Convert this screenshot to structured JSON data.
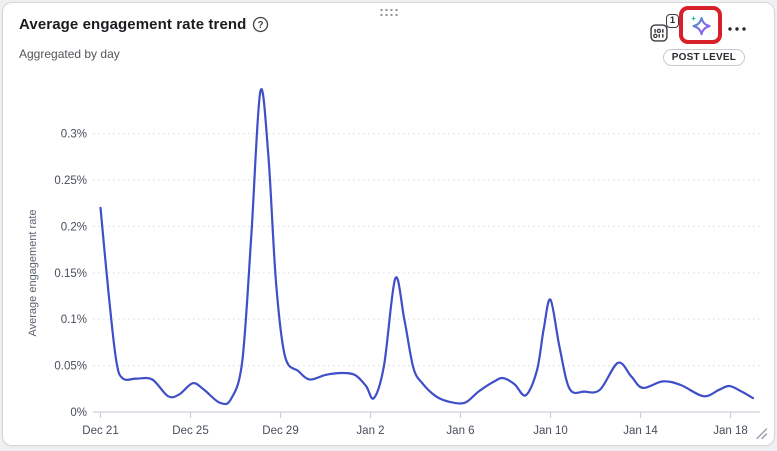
{
  "header": {
    "title": "Average engagement rate trend",
    "subtitle": "Aggregated by day",
    "help_glyph": "?",
    "filter_button": {
      "icon": "metric-sliders-icon",
      "badge_count": "1"
    },
    "ai_button": {
      "icon": "ai-sparkle-icon",
      "highlighted": true
    },
    "more_button": {
      "icon": "ellipsis-icon"
    },
    "level_badge": "POST LEVEL"
  },
  "colors": {
    "page_background": "#eef0f2",
    "card_background": "#ffffff",
    "card_border": "#d6d6da",
    "title_text": "#1b1c20",
    "subtitle_text": "#55565c",
    "axis_text": "#474e5b",
    "axis_title_text": "#5a6270",
    "axis_line": "#ccd0d6",
    "gridline": "#dcdfe4",
    "line": "#3e4fc7",
    "highlight_red": "#d7202a",
    "sparkle_teal": "#11b3b3",
    "sparkle_purple": "#8b5cf6",
    "icon_gray": "#3c3d42"
  },
  "chart_data": {
    "type": "line",
    "title": "Average engagement rate trend",
    "aggregation": "Aggregated by day",
    "ylabel": "Average engagement rate",
    "xlabel": "",
    "unit": "%",
    "ylim": [
      0,
      0.35
    ],
    "grid": "dotted-horizontal",
    "legend": "none",
    "y_ticks": [
      {
        "value": 0,
        "label": "0%"
      },
      {
        "value": 0.05,
        "label": "0.05%"
      },
      {
        "value": 0.1,
        "label": "0.1%"
      },
      {
        "value": 0.15,
        "label": "0.15%"
      },
      {
        "value": 0.2,
        "label": "0.2%"
      },
      {
        "value": 0.25,
        "label": "0.25%"
      },
      {
        "value": 0.3,
        "label": "0.3%"
      }
    ],
    "x_ticks": [
      {
        "day": 0,
        "label": "Dec 21"
      },
      {
        "day": 4,
        "label": "Dec 25"
      },
      {
        "day": 8,
        "label": "Dec 29"
      },
      {
        "day": 12,
        "label": "Jan 2"
      },
      {
        "day": 16,
        "label": "Jan 6"
      },
      {
        "day": 20,
        "label": "Jan 10"
      },
      {
        "day": 24,
        "label": "Jan 14"
      },
      {
        "day": 28,
        "label": "Jan 18"
      }
    ],
    "x_domain_days": [
      0,
      29
    ],
    "series": [
      {
        "name": "Average engagement rate",
        "smoothing": "spline",
        "points_day_pct": [
          [
            0,
            0.22
          ],
          [
            0.35,
            0.13
          ],
          [
            0.7,
            0.055
          ],
          [
            1,
            0.036
          ],
          [
            1.6,
            0.036
          ],
          [
            2.3,
            0.035
          ],
          [
            3,
            0.017
          ],
          [
            3.5,
            0.019
          ],
          [
            4.1,
            0.031
          ],
          [
            4.6,
            0.024
          ],
          [
            5.3,
            0.01
          ],
          [
            5.8,
            0.014
          ],
          [
            6.3,
            0.055
          ],
          [
            6.7,
            0.19
          ],
          [
            7.1,
            0.345
          ],
          [
            7.45,
            0.28
          ],
          [
            7.8,
            0.14
          ],
          [
            8.2,
            0.06
          ],
          [
            8.8,
            0.044
          ],
          [
            9.3,
            0.035
          ],
          [
            10,
            0.04
          ],
          [
            10.7,
            0.042
          ],
          [
            11.3,
            0.04
          ],
          [
            11.8,
            0.028
          ],
          [
            12.15,
            0.015
          ],
          [
            12.6,
            0.05
          ],
          [
            13.1,
            0.144
          ],
          [
            13.5,
            0.1
          ],
          [
            13.9,
            0.048
          ],
          [
            14.3,
            0.031
          ],
          [
            14.9,
            0.017
          ],
          [
            15.5,
            0.011
          ],
          [
            16.2,
            0.01
          ],
          [
            16.8,
            0.022
          ],
          [
            17.5,
            0.033
          ],
          [
            17.9,
            0.0365
          ],
          [
            18.4,
            0.03
          ],
          [
            18.9,
            0.018
          ],
          [
            19.4,
            0.045
          ],
          [
            19.7,
            0.09
          ],
          [
            20,
            0.121
          ],
          [
            20.4,
            0.07
          ],
          [
            20.85,
            0.025
          ],
          [
            21.5,
            0.022
          ],
          [
            22.2,
            0.024
          ],
          [
            23,
            0.053
          ],
          [
            23.6,
            0.038
          ],
          [
            24.1,
            0.026
          ],
          [
            25,
            0.033
          ],
          [
            25.8,
            0.029
          ],
          [
            26.8,
            0.017
          ],
          [
            27.5,
            0.024
          ],
          [
            27.95,
            0.028
          ],
          [
            28.5,
            0.022
          ],
          [
            29,
            0.015
          ]
        ]
      }
    ]
  }
}
